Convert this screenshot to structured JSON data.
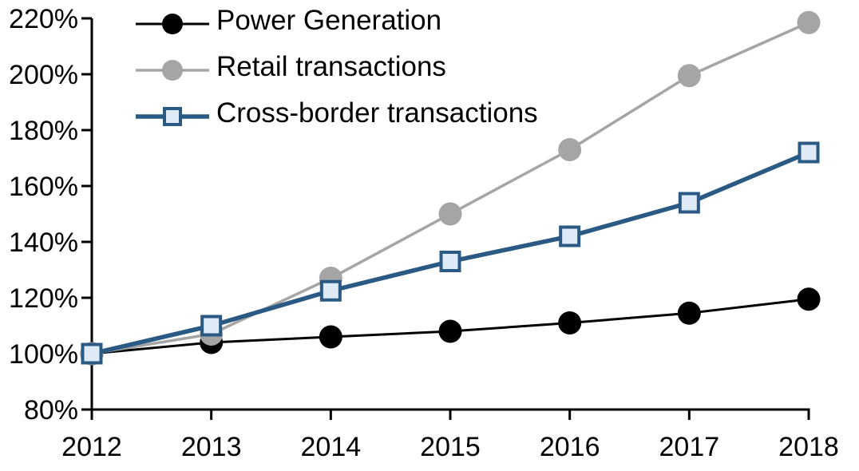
{
  "chart_data": {
    "type": "line",
    "title": "",
    "xlabel": "",
    "ylabel": "",
    "grid": false,
    "legend_position": "top-left",
    "axis_color": "#000000",
    "background_color": "#ffffff",
    "categories": [
      "2012",
      "2013",
      "2014",
      "2015",
      "2016",
      "2017",
      "2018"
    ],
    "ylim": [
      80,
      220
    ],
    "ytick_step": 20,
    "ytick_labels": [
      "80%",
      "100%",
      "120%",
      "140%",
      "160%",
      "180%",
      "200%",
      "220%"
    ],
    "series": [
      {
        "name": "Power Generation",
        "values": [
          100,
          104,
          106,
          108,
          111,
          114.5,
          119.5
        ],
        "color": "#000000",
        "marker": "circle",
        "marker_fill": "#000000",
        "line_width": 3
      },
      {
        "name": "Retail transactions",
        "values": [
          100,
          107,
          127,
          150,
          173,
          199.5,
          218.5
        ],
        "color": "#A5A5A5",
        "marker": "circle",
        "marker_fill": "#A5A5A5",
        "line_width": 3.5
      },
      {
        "name": "Cross-border transactions",
        "values": [
          100,
          110,
          122.5,
          133,
          142,
          154,
          172
        ],
        "color": "#2A5A84",
        "marker": "square",
        "marker_fill": "#DEEBF7",
        "line_width": 5.5
      }
    ]
  }
}
